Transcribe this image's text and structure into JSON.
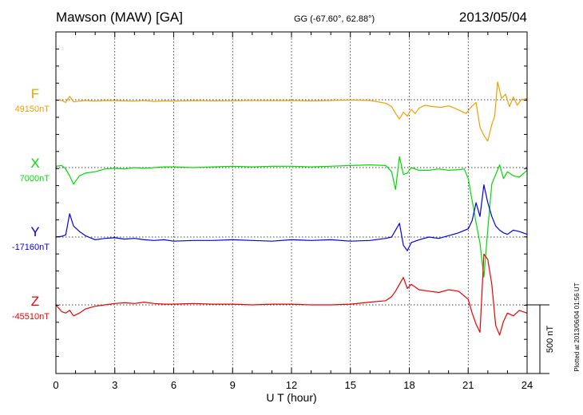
{
  "chart_data": {
    "type": "line",
    "title": "Mawson (MAW)  [GA]",
    "coords": "GG (-67.60°,  62.88°)",
    "date": "2013/05/04",
    "xlabel": "U T (hour)",
    "xlim": [
      0,
      24
    ],
    "xticks": [
      "0",
      "3",
      "6",
      "9",
      "12",
      "15",
      "18",
      "21",
      "24"
    ],
    "scale_label": "500 nT",
    "plotted_note": "Plotted at 2013/06/04 01:56 UT",
    "grid": true,
    "series": [
      {
        "name": "F",
        "baseline_label": "49150nT",
        "color": "#f0a000",
        "points": [
          [
            0,
            0
          ],
          [
            0.3,
            -5
          ],
          [
            0.5,
            -20
          ],
          [
            0.7,
            25
          ],
          [
            0.9,
            -15
          ],
          [
            1.2,
            -10
          ],
          [
            1.5,
            -5
          ],
          [
            2,
            -10
          ],
          [
            2.5,
            -5
          ],
          [
            3,
            -6
          ],
          [
            3.5,
            -8
          ],
          [
            4,
            -10
          ],
          [
            4.5,
            -5
          ],
          [
            5,
            -12
          ],
          [
            5.5,
            -8
          ],
          [
            6,
            -10
          ],
          [
            7,
            -6
          ],
          [
            8,
            -8
          ],
          [
            9,
            -7
          ],
          [
            10,
            -5
          ],
          [
            11,
            -6
          ],
          [
            12,
            -5
          ],
          [
            13,
            -8
          ],
          [
            14,
            -5
          ],
          [
            15,
            -2
          ],
          [
            16,
            -5
          ],
          [
            16.8,
            -25
          ],
          [
            17.1,
            -50
          ],
          [
            17.3,
            -100
          ],
          [
            17.5,
            -140
          ],
          [
            17.7,
            -90
          ],
          [
            17.9,
            -120
          ],
          [
            18.1,
            -70
          ],
          [
            18.3,
            -100
          ],
          [
            18.5,
            -60
          ],
          [
            18.8,
            -40
          ],
          [
            19.2,
            -50
          ],
          [
            19.6,
            -55
          ],
          [
            20,
            -45
          ],
          [
            20.3,
            -60
          ],
          [
            20.6,
            -80
          ],
          [
            20.9,
            -100
          ],
          [
            21.1,
            -60
          ],
          [
            21.4,
            -20
          ],
          [
            21.6,
            -200
          ],
          [
            21.8,
            -260
          ],
          [
            22,
            -300
          ],
          [
            22.2,
            -180
          ],
          [
            22.35,
            -120
          ],
          [
            22.5,
            130
          ],
          [
            22.7,
            10
          ],
          [
            22.9,
            40
          ],
          [
            23.1,
            -50
          ],
          [
            23.3,
            20
          ],
          [
            23.5,
            -40
          ],
          [
            23.7,
            0
          ],
          [
            24,
            10
          ]
        ]
      },
      {
        "name": "X",
        "baseline_label": "7000nT",
        "color": "#00dd00",
        "points": [
          [
            0,
            10
          ],
          [
            0.3,
            15
          ],
          [
            0.5,
            -10
          ],
          [
            0.7,
            -60
          ],
          [
            0.9,
            -120
          ],
          [
            1.2,
            -60
          ],
          [
            1.5,
            -40
          ],
          [
            2,
            -30
          ],
          [
            2.5,
            -10
          ],
          [
            3,
            -5
          ],
          [
            3.5,
            -10
          ],
          [
            4,
            0
          ],
          [
            4.5,
            -5
          ],
          [
            5,
            0
          ],
          [
            5.5,
            5
          ],
          [
            6,
            5
          ],
          [
            7,
            0
          ],
          [
            8,
            5
          ],
          [
            9,
            10
          ],
          [
            10,
            5
          ],
          [
            11,
            10
          ],
          [
            12,
            10
          ],
          [
            13,
            5
          ],
          [
            14,
            10
          ],
          [
            15,
            15
          ],
          [
            16,
            20
          ],
          [
            16.8,
            15
          ],
          [
            17.1,
            -30
          ],
          [
            17.3,
            -160
          ],
          [
            17.5,
            80
          ],
          [
            17.7,
            -50
          ],
          [
            17.9,
            -40
          ],
          [
            18.1,
            0
          ],
          [
            18.5,
            -20
          ],
          [
            19,
            -20
          ],
          [
            19.5,
            -10
          ],
          [
            20,
            -20
          ],
          [
            20.5,
            -15
          ],
          [
            20.8,
            -10
          ],
          [
            21,
            -80
          ],
          [
            21.2,
            -240
          ],
          [
            21.4,
            -400
          ],
          [
            21.6,
            -550
          ],
          [
            21.8,
            -800
          ],
          [
            22,
            -450
          ],
          [
            22.2,
            -120
          ],
          [
            22.4,
            -50
          ],
          [
            22.6,
            20
          ],
          [
            22.8,
            -80
          ],
          [
            23,
            -30
          ],
          [
            23.3,
            -60
          ],
          [
            23.6,
            -70
          ],
          [
            24,
            -20
          ]
        ]
      },
      {
        "name": "Y",
        "baseline_label": "-17160nT",
        "color": "#0000ee",
        "points": [
          [
            0,
            0
          ],
          [
            0.3,
            5
          ],
          [
            0.5,
            15
          ],
          [
            0.7,
            170
          ],
          [
            0.9,
            80
          ],
          [
            1.2,
            40
          ],
          [
            1.5,
            10
          ],
          [
            2,
            -20
          ],
          [
            2.5,
            -10
          ],
          [
            3,
            -5
          ],
          [
            3.5,
            -15
          ],
          [
            4,
            -10
          ],
          [
            4.5,
            -20
          ],
          [
            5,
            -25
          ],
          [
            5.5,
            -20
          ],
          [
            6,
            -30
          ],
          [
            7,
            -25
          ],
          [
            8,
            -25
          ],
          [
            9,
            -20
          ],
          [
            10,
            -25
          ],
          [
            11,
            -30
          ],
          [
            12,
            -20
          ],
          [
            13,
            -25
          ],
          [
            14,
            -20
          ],
          [
            15,
            -30
          ],
          [
            16,
            -25
          ],
          [
            16.8,
            -10
          ],
          [
            17.1,
            0
          ],
          [
            17.3,
            50
          ],
          [
            17.5,
            100
          ],
          [
            17.7,
            -60
          ],
          [
            17.9,
            -100
          ],
          [
            18.1,
            -40
          ],
          [
            18.5,
            -20
          ],
          [
            19,
            0
          ],
          [
            19.5,
            -10
          ],
          [
            20,
            10
          ],
          [
            20.5,
            30
          ],
          [
            21,
            60
          ],
          [
            21.2,
            120
          ],
          [
            21.4,
            250
          ],
          [
            21.6,
            150
          ],
          [
            21.8,
            380
          ],
          [
            22,
            250
          ],
          [
            22.2,
            150
          ],
          [
            22.4,
            80
          ],
          [
            22.6,
            50
          ],
          [
            22.8,
            30
          ],
          [
            23,
            20
          ],
          [
            23.3,
            50
          ],
          [
            23.6,
            40
          ],
          [
            24,
            20
          ]
        ]
      },
      {
        "name": "Z",
        "baseline_label": "-45510nT",
        "color": "#ee0000",
        "points": [
          [
            0,
            0
          ],
          [
            0.3,
            -50
          ],
          [
            0.5,
            -60
          ],
          [
            0.7,
            -40
          ],
          [
            0.9,
            -80
          ],
          [
            1.2,
            -60
          ],
          [
            1.5,
            -30
          ],
          [
            2,
            -10
          ],
          [
            2.5,
            0
          ],
          [
            3,
            10
          ],
          [
            3.5,
            15
          ],
          [
            4,
            10
          ],
          [
            4.5,
            20
          ],
          [
            5,
            10
          ],
          [
            5.5,
            5
          ],
          [
            6,
            5
          ],
          [
            7,
            10
          ],
          [
            8,
            5
          ],
          [
            9,
            5
          ],
          [
            10,
            0
          ],
          [
            11,
            5
          ],
          [
            12,
            5
          ],
          [
            13,
            0
          ],
          [
            14,
            0
          ],
          [
            15,
            5
          ],
          [
            16,
            20
          ],
          [
            16.8,
            30
          ],
          [
            17.1,
            60
          ],
          [
            17.3,
            100
          ],
          [
            17.5,
            150
          ],
          [
            17.7,
            200
          ],
          [
            17.9,
            120
          ],
          [
            18.1,
            150
          ],
          [
            18.5,
            110
          ],
          [
            19,
            100
          ],
          [
            19.5,
            90
          ],
          [
            20,
            110
          ],
          [
            20.5,
            100
          ],
          [
            21,
            40
          ],
          [
            21.2,
            -60
          ],
          [
            21.4,
            -140
          ],
          [
            21.6,
            -200
          ],
          [
            21.8,
            370
          ],
          [
            22,
            330
          ],
          [
            22.2,
            150
          ],
          [
            22.4,
            -150
          ],
          [
            22.6,
            -220
          ],
          [
            22.8,
            -120
          ],
          [
            23,
            -60
          ],
          [
            23.3,
            -80
          ],
          [
            23.6,
            -40
          ],
          [
            24,
            -60
          ]
        ]
      }
    ]
  }
}
